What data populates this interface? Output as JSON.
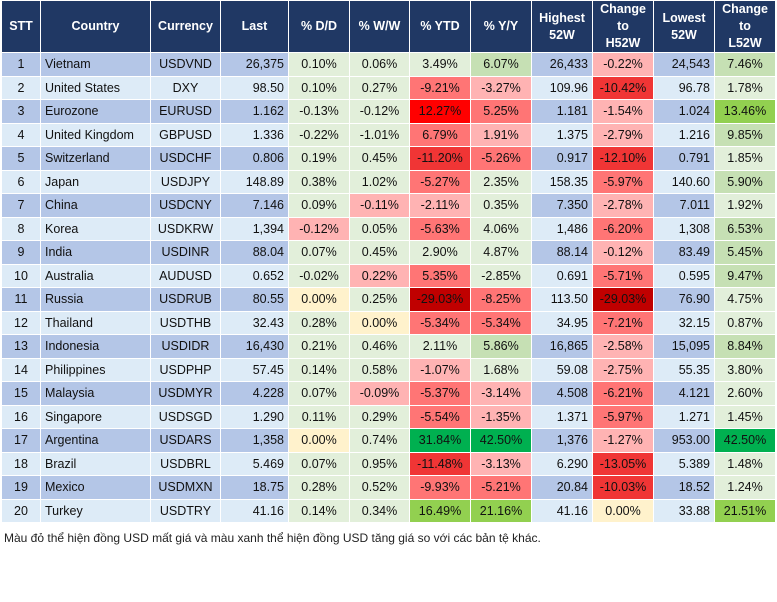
{
  "palette": {
    "lg": "#e2efda",
    "g1": "#c6e0b4",
    "g2": "#92d050",
    "g3": "#00b050",
    "r1": "#ffb3b3",
    "r2": "#ff7575",
    "r3": "#f03535",
    "r4": "#ff0000",
    "r5": "#c00000",
    "y": "#fff2cc",
    "dark": "#b4c6e7",
    "light": "#ddebf7"
  },
  "headers": [
    "STT",
    "Country",
    "Currency",
    "Last",
    "% D/D",
    "% W/W",
    "% YTD",
    "% Y/Y",
    "Highest 52W",
    "Change to H52W",
    "Lowest 52W",
    "Change to L52W"
  ],
  "rows": [
    {
      "values": [
        "1",
        "Vietnam",
        "USDVND",
        "26,375",
        "0.10%",
        "0.06%",
        "3.49%",
        "6.07%",
        "26,433",
        "-0.22%",
        "24,543",
        "7.46%"
      ],
      "colors": [
        "lg",
        "lg",
        "lg",
        "g1",
        "dark",
        "r1",
        "dark",
        "g1"
      ]
    },
    {
      "values": [
        "2",
        "United States",
        "DXY",
        "98.50",
        "0.10%",
        "0.27%",
        "-9.21%",
        "-3.27%",
        "109.96",
        "-10.42%",
        "96.78",
        "1.78%"
      ],
      "colors": [
        "lg",
        "lg",
        "r2",
        "r1",
        "light",
        "r3",
        "light",
        "lg"
      ]
    },
    {
      "values": [
        "3",
        "Eurozone",
        "EURUSD",
        "1.162",
        "-0.13%",
        "-0.12%",
        "12.27%",
        "5.25%",
        "1.181",
        "-1.54%",
        "1.024",
        "13.46%"
      ],
      "colors": [
        "lg",
        "lg",
        "r4",
        "r2",
        "dark",
        "r1",
        "dark",
        "g2"
      ]
    },
    {
      "values": [
        "4",
        "United Kingdom",
        "GBPUSD",
        "1.336",
        "-0.22%",
        "-1.01%",
        "6.79%",
        "1.91%",
        "1.375",
        "-2.79%",
        "1.216",
        "9.85%"
      ],
      "colors": [
        "lg",
        "lg",
        "r2",
        "r1",
        "light",
        "r1",
        "light",
        "g1"
      ]
    },
    {
      "values": [
        "5",
        "Switzerland",
        "USDCHF",
        "0.806",
        "0.19%",
        "0.45%",
        "-11.20%",
        "-5.26%",
        "0.917",
        "-12.10%",
        "0.791",
        "1.85%"
      ],
      "colors": [
        "lg",
        "lg",
        "r3",
        "r2",
        "dark",
        "r3",
        "dark",
        "lg"
      ]
    },
    {
      "values": [
        "6",
        "Japan",
        "USDJPY",
        "148.89",
        "0.38%",
        "1.02%",
        "-5.27%",
        "2.35%",
        "158.35",
        "-5.97%",
        "140.60",
        "5.90%"
      ],
      "colors": [
        "lg",
        "lg",
        "r2",
        "lg",
        "light",
        "r2",
        "light",
        "g1"
      ]
    },
    {
      "values": [
        "7",
        "China",
        "USDCNY",
        "7.146",
        "0.09%",
        "-0.11%",
        "-2.11%",
        "0.35%",
        "7.350",
        "-2.78%",
        "7.011",
        "1.92%"
      ],
      "colors": [
        "lg",
        "r1",
        "r1",
        "lg",
        "dark",
        "r1",
        "dark",
        "lg"
      ]
    },
    {
      "values": [
        "8",
        "Korea",
        "USDKRW",
        "1,394",
        "-0.12%",
        "0.05%",
        "-5.63%",
        "4.06%",
        "1,486",
        "-6.20%",
        "1,308",
        "6.53%"
      ],
      "colors": [
        "r1",
        "lg",
        "r2",
        "lg",
        "light",
        "r2",
        "light",
        "g1"
      ]
    },
    {
      "values": [
        "9",
        "India",
        "USDINR",
        "88.04",
        "0.07%",
        "0.45%",
        "2.90%",
        "4.87%",
        "88.14",
        "-0.12%",
        "83.49",
        "5.45%"
      ],
      "colors": [
        "lg",
        "lg",
        "lg",
        "lg",
        "dark",
        "r1",
        "dark",
        "g1"
      ]
    },
    {
      "values": [
        "10",
        "Australia",
        "AUDUSD",
        "0.652",
        "-0.02%",
        "0.22%",
        "5.35%",
        "-2.85%",
        "0.691",
        "-5.71%",
        "0.595",
        "9.47%"
      ],
      "colors": [
        "lg",
        "r1",
        "r2",
        "lg",
        "light",
        "r2",
        "light",
        "g1"
      ]
    },
    {
      "values": [
        "11",
        "Russia",
        "USDRUB",
        "80.55",
        "0.00%",
        "0.25%",
        "-29.03%",
        "-8.25%",
        "113.50",
        "-29.03%",
        "76.90",
        "4.75%"
      ],
      "colors": [
        "y",
        "lg",
        "r5",
        "r2",
        "light",
        "r5",
        "dark",
        "lg"
      ]
    },
    {
      "values": [
        "12",
        "Thailand",
        "USDTHB",
        "32.43",
        "0.28%",
        "0.00%",
        "-5.34%",
        "-5.34%",
        "34.95",
        "-7.21%",
        "32.15",
        "0.87%"
      ],
      "colors": [
        "lg",
        "y",
        "r2",
        "r2",
        "light",
        "r2",
        "light",
        "lg"
      ]
    },
    {
      "values": [
        "13",
        "Indonesia",
        "USDIDR",
        "16,430",
        "0.21%",
        "0.46%",
        "2.11%",
        "5.86%",
        "16,865",
        "-2.58%",
        "15,095",
        "8.84%"
      ],
      "colors": [
        "lg",
        "lg",
        "lg",
        "g1",
        "dark",
        "r1",
        "dark",
        "g1"
      ]
    },
    {
      "values": [
        "14",
        "Philippines",
        "USDPHP",
        "57.45",
        "0.14%",
        "0.58%",
        "-1.07%",
        "1.68%",
        "59.08",
        "-2.75%",
        "55.35",
        "3.80%"
      ],
      "colors": [
        "lg",
        "lg",
        "r1",
        "lg",
        "light",
        "r1",
        "light",
        "lg"
      ]
    },
    {
      "values": [
        "15",
        "Malaysia",
        "USDMYR",
        "4.228",
        "0.07%",
        "-0.09%",
        "-5.37%",
        "-3.14%",
        "4.508",
        "-6.21%",
        "4.121",
        "2.60%"
      ],
      "colors": [
        "lg",
        "r1",
        "r2",
        "r1",
        "dark",
        "r2",
        "dark",
        "lg"
      ]
    },
    {
      "values": [
        "16",
        "Singapore",
        "USDSGD",
        "1.290",
        "0.11%",
        "0.29%",
        "-5.54%",
        "-1.35%",
        "1.371",
        "-5.97%",
        "1.271",
        "1.45%"
      ],
      "colors": [
        "lg",
        "lg",
        "r2",
        "r1",
        "light",
        "r2",
        "light",
        "lg"
      ]
    },
    {
      "values": [
        "17",
        "Argentina",
        "USDARS",
        "1,358",
        "0.00%",
        "0.74%",
        "31.84%",
        "42.50%",
        "1,376",
        "-1.27%",
        "953.00",
        "42.50%"
      ],
      "colors": [
        "y",
        "lg",
        "g3",
        "g3",
        "dark",
        "r1",
        "dark",
        "g3"
      ]
    },
    {
      "values": [
        "18",
        "Brazil",
        "USDBRL",
        "5.469",
        "0.07%",
        "0.95%",
        "-11.48%",
        "-3.13%",
        "6.290",
        "-13.05%",
        "5.389",
        "1.48%"
      ],
      "colors": [
        "lg",
        "lg",
        "r3",
        "r1",
        "light",
        "r3",
        "light",
        "lg"
      ]
    },
    {
      "values": [
        "19",
        "Mexico",
        "USDMXN",
        "18.75",
        "0.28%",
        "0.52%",
        "-9.93%",
        "-5.21%",
        "20.84",
        "-10.03%",
        "18.52",
        "1.24%"
      ],
      "colors": [
        "lg",
        "lg",
        "r2",
        "r2",
        "dark",
        "r3",
        "dark",
        "lg"
      ]
    },
    {
      "values": [
        "20",
        "Turkey",
        "USDTRY",
        "41.16",
        "0.14%",
        "0.34%",
        "16.49%",
        "21.16%",
        "41.16",
        "0.00%",
        "33.88",
        "21.51%"
      ],
      "colors": [
        "lg",
        "lg",
        "g2",
        "g2",
        "light",
        "y",
        "light",
        "g2"
      ]
    }
  ],
  "footnote": "Màu đỏ thể hiện đồng USD mất giá và màu xanh thể hiện đồng USD tăng giá so với các bản tệ khác."
}
